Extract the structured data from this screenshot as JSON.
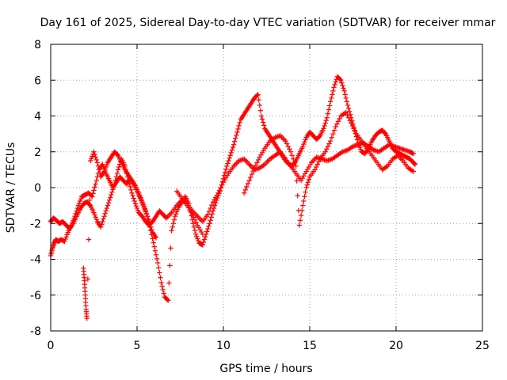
{
  "chart_data": {
    "type": "scatter",
    "title": "Day 161 of 2025, Sidereal Day-to-day VTEC variation (SDTVAR) for receiver mmar",
    "xlabel": "GPS time / hours",
    "ylabel": "SDTVAR / TECUs",
    "xlim": [
      0,
      25
    ],
    "ylim": [
      -8,
      8
    ],
    "x_ticks": [
      "0",
      "5",
      "10",
      "15",
      "20",
      "25"
    ],
    "y_ticks": [
      "-8",
      "-6",
      "-4",
      "-2",
      "0",
      "2",
      "4",
      "6",
      "8"
    ],
    "grid": true,
    "marker": "plus",
    "color": "#ff0000",
    "series": [
      {
        "name": "sdtvar",
        "x": [
          0.0,
          0.1,
          0.2,
          0.3,
          0.45,
          0.6,
          0.8,
          1.0,
          1.2,
          1.4,
          1.6,
          1.8,
          2.0,
          2.2,
          2.4,
          2.6,
          2.8,
          3.0,
          3.2,
          3.4,
          3.6,
          3.8,
          4.0,
          4.2,
          4.4,
          4.6,
          4.8,
          5.0,
          5.2,
          5.4,
          5.6,
          5.8,
          6.0,
          6.2,
          6.4,
          6.6,
          6.8,
          7.0,
          7.2,
          7.4,
          7.6,
          7.8,
          8.0,
          8.2,
          8.4,
          8.6,
          8.8,
          9.0,
          9.2,
          9.4,
          9.6,
          9.8,
          10.0,
          10.2,
          10.4,
          10.6,
          10.8,
          11.0,
          11.2,
          11.4,
          11.6,
          11.8,
          12.0,
          12.2,
          12.4,
          12.6,
          12.8,
          13.0,
          13.2,
          13.4,
          13.6,
          13.8,
          14.0,
          14.2,
          14.4,
          14.6,
          14.8,
          15.0,
          15.2,
          15.4,
          15.6,
          15.8,
          16.0,
          16.2,
          16.4,
          16.6,
          16.8,
          17.0,
          17.2,
          17.4,
          17.6,
          17.8,
          18.0,
          18.2,
          18.4,
          18.6,
          18.8,
          19.0,
          19.2,
          19.4,
          19.6,
          19.8,
          20.0,
          20.2,
          20.4,
          20.6,
          20.8,
          21.0,
          21.1
        ],
        "y": [
          -3.8,
          -3.4,
          -3.1,
          -2.9,
          -3.0,
          -2.9,
          -3.0,
          -2.5,
          -2.1,
          -1.6,
          -1.0,
          -0.5,
          -0.4,
          -0.3,
          -0.5,
          0.2,
          1.0,
          1.3,
          0.8,
          0.4,
          0.0,
          0.3,
          0.6,
          0.4,
          0.2,
          0.5,
          0.2,
          -0.2,
          -0.6,
          -1.1,
          -1.6,
          -2.4,
          -3.3,
          -4.2,
          -5.3,
          -6.1,
          -6.3,
          -2.4,
          -1.6,
          -1.1,
          -0.8,
          -0.5,
          -0.9,
          -1.8,
          -2.6,
          -3.1,
          -3.2,
          -2.6,
          -2.0,
          -1.3,
          -0.7,
          -0.2,
          0.5,
          1.2,
          1.8,
          2.4,
          3.1,
          3.8,
          4.1,
          4.4,
          4.7,
          5.0,
          5.2,
          4.0,
          3.3,
          3.0,
          2.7,
          2.4,
          2.1,
          1.8,
          1.5,
          1.3,
          1.2,
          1.5,
          1.9,
          2.3,
          2.8,
          3.1,
          2.9,
          2.7,
          2.9,
          3.3,
          3.9,
          4.8,
          5.6,
          6.2,
          6.0,
          5.4,
          4.6,
          3.9,
          3.2,
          2.5,
          2.0,
          1.9,
          2.2,
          2.6,
          2.9,
          3.1,
          3.2,
          3.0,
          2.6,
          2.2,
          2.0,
          1.9,
          1.8,
          1.7,
          1.6,
          1.4,
          1.3
        ]
      },
      {
        "name": "sdtvar",
        "x": [
          0.0,
          0.15,
          0.3,
          0.5,
          0.7,
          0.9,
          1.1,
          1.3,
          1.5,
          1.7,
          1.9,
          2.1,
          2.3,
          2.5,
          2.7,
          2.9,
          3.1,
          3.3,
          3.5,
          3.7,
          3.9,
          4.1,
          4.3,
          4.5,
          4.7,
          4.9,
          5.1,
          5.3,
          5.5,
          5.7,
          5.9,
          6.1,
          6.3,
          6.5,
          6.7,
          7.0,
          7.3,
          7.6,
          7.9,
          8.2,
          8.5,
          8.8,
          9.1,
          9.4,
          9.7,
          10.0,
          10.3,
          10.6,
          10.9,
          11.2,
          11.5,
          11.8,
          12.1,
          12.4,
          12.7,
          13.0,
          13.3,
          13.6,
          13.9,
          14.2,
          14.5,
          14.8,
          15.1,
          15.4,
          15.7,
          16.0,
          16.3,
          16.6,
          16.9,
          17.2,
          17.5,
          17.8,
          18.1,
          18.4,
          18.7,
          19.0,
          19.3,
          19.6,
          19.9,
          20.2,
          20.5,
          20.8,
          21.0
        ],
        "y": [
          -1.9,
          -1.7,
          -1.8,
          -2.0,
          -1.9,
          -2.1,
          -2.3,
          -2.0,
          -1.6,
          -1.2,
          -0.9,
          -0.8,
          -1.0,
          -1.4,
          -1.9,
          -2.2,
          -1.6,
          -1.0,
          -0.4,
          0.2,
          1.0,
          1.6,
          1.2,
          0.4,
          -0.3,
          -0.9,
          -1.4,
          -1.6,
          -1.9,
          -2.1,
          -1.9,
          -1.6,
          -1.3,
          -1.5,
          -1.7,
          -1.4,
          -1.0,
          -0.7,
          -0.9,
          -1.3,
          -1.6,
          -1.9,
          -1.5,
          -0.8,
          -0.3,
          0.3,
          0.8,
          1.2,
          1.5,
          1.6,
          1.3,
          1.0,
          1.1,
          1.3,
          1.6,
          1.8,
          2.0,
          1.6,
          1.2,
          0.8,
          0.4,
          0.9,
          1.4,
          1.7,
          1.6,
          1.5,
          1.6,
          1.8,
          2.0,
          2.1,
          2.3,
          2.4,
          2.5,
          2.3,
          2.1,
          2.0,
          2.2,
          2.4,
          2.3,
          2.2,
          2.1,
          2.0,
          1.9
        ]
      },
      {
        "name": "sdtvar",
        "x": [
          1.9,
          1.95,
          2.0,
          2.05,
          2.1,
          2.3,
          2.5,
          2.7,
          2.9,
          3.1,
          3.3,
          3.5,
          3.7,
          3.9,
          4.1,
          4.3,
          4.5,
          4.7,
          4.9,
          5.1,
          5.3,
          5.5,
          5.7,
          5.9,
          6.1,
          7.3,
          7.6,
          7.9,
          8.2,
          8.5,
          8.8,
          11.2,
          11.5,
          11.8,
          12.1,
          12.4,
          12.7,
          13.0,
          13.3,
          13.6,
          13.9,
          14.2,
          14.4,
          14.6,
          14.8,
          15.0,
          15.3,
          15.6,
          15.9,
          16.2,
          16.5,
          16.8,
          17.1,
          17.4,
          17.7,
          18.0,
          18.3,
          18.6,
          18.9,
          19.2,
          19.5,
          19.8,
          20.1,
          20.4,
          20.7,
          21.0
        ],
        "y": [
          -4.5,
          -5.2,
          -6.0,
          -6.8,
          -7.3,
          1.5,
          2.0,
          1.4,
          0.6,
          0.9,
          1.4,
          1.7,
          2.0,
          1.8,
          1.4,
          1.0,
          0.7,
          0.4,
          0.1,
          -0.3,
          -0.8,
          -1.3,
          -1.9,
          -2.5,
          -2.8,
          -0.2,
          -0.6,
          -1.0,
          -1.5,
          -2.1,
          -2.6,
          -0.3,
          0.4,
          1.1,
          1.7,
          2.2,
          2.6,
          2.8,
          2.9,
          2.6,
          2.0,
          1.2,
          -2.1,
          -1.0,
          0.0,
          0.6,
          1.0,
          1.6,
          2.0,
          2.6,
          3.4,
          4.0,
          4.2,
          3.6,
          3.0,
          2.6,
          2.2,
          1.8,
          1.4,
          1.0,
          1.2,
          1.6,
          1.8,
          1.5,
          1.1,
          0.9
        ]
      }
    ]
  }
}
